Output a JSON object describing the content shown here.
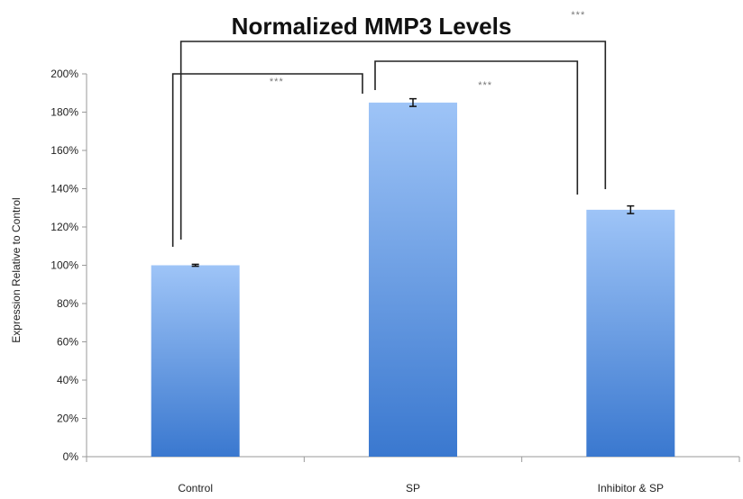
{
  "chart_data": {
    "type": "bar",
    "title": "Normalized MMP3 Levels",
    "xlabel": "",
    "ylabel": "Expression Relative to Control",
    "categories": [
      "Control",
      "SP",
      "Inhibitor & SP"
    ],
    "values": [
      100,
      185,
      129
    ],
    "errors": [
      0.5,
      2,
      2
    ],
    "ylim": [
      0,
      200
    ],
    "yticks": [
      0,
      20,
      40,
      60,
      80,
      100,
      120,
      140,
      160,
      180,
      200
    ],
    "ytick_labels": [
      "0%",
      "20%",
      "40%",
      "60%",
      "80%",
      "100%",
      "120%",
      "140%",
      "160%",
      "180%",
      "200%"
    ],
    "grid": false,
    "legend": "none",
    "bar_color_top": "#9ec4f7",
    "bar_color_bottom": "#3a78cf",
    "significance": [
      {
        "from": "Control",
        "to": "SP",
        "label": "***"
      },
      {
        "from": "SP",
        "to": "Inhibitor & SP",
        "label": "***"
      },
      {
        "from": "Control",
        "to": "Inhibitor & SP",
        "label": "***"
      }
    ]
  }
}
